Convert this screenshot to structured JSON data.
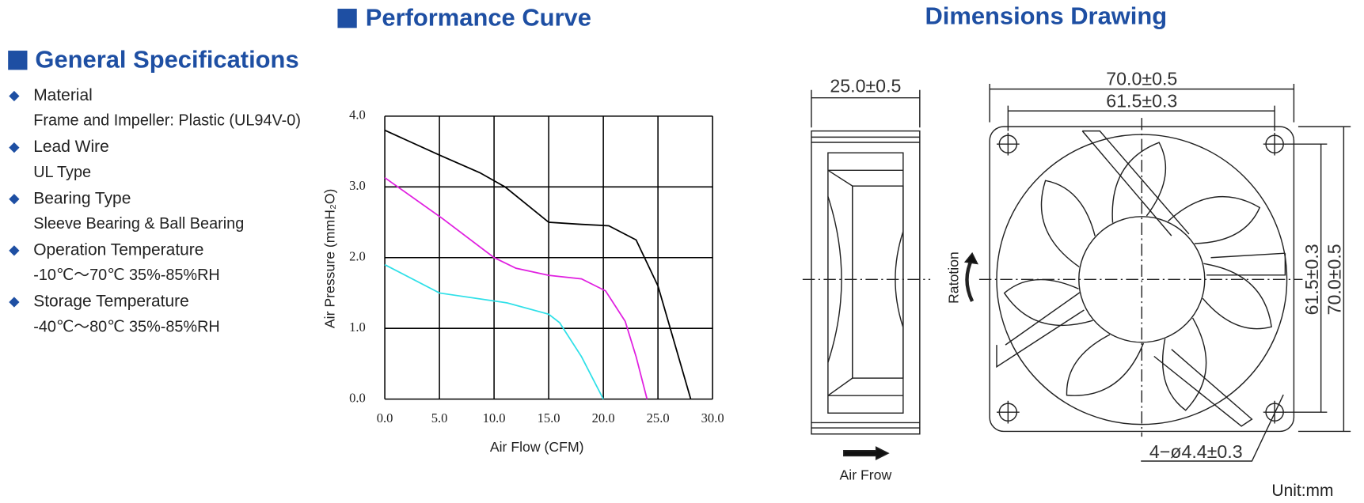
{
  "general_specifications": {
    "title": "General Specifications",
    "items": [
      {
        "label": "Material",
        "value": "Frame and Impeller: Plastic (UL94V-0)"
      },
      {
        "label": "Lead Wire",
        "value": "UL Type"
      },
      {
        "label": "Bearing Type",
        "value": "Sleeve Bearing & Ball Bearing"
      },
      {
        "label": "Operation Temperature",
        "value": "-10℃～70℃  35%-85%RH"
      },
      {
        "label": "Storage Temperature",
        "value": "-40℃～80℃  35%-85%RH"
      }
    ]
  },
  "chart_data": {
    "type": "line",
    "title": "Performance Curve",
    "x_label": "Air Flow (CFM)",
    "y_label": "Air Pressure (mmH₂O)",
    "xlim": [
      0,
      30
    ],
    "ylim": [
      0,
      4
    ],
    "xticks": [
      {
        "value": 0,
        "label": "0.0"
      },
      {
        "value": 5,
        "label": "5.0"
      },
      {
        "value": 10,
        "label": "10.0"
      },
      {
        "value": 15,
        "label": "15.0"
      },
      {
        "value": 20,
        "label": "20.0"
      },
      {
        "value": 25,
        "label": "25.0"
      },
      {
        "value": 30,
        "label": "30.0"
      }
    ],
    "yticks": [
      {
        "value": 0,
        "label": "0.0"
      },
      {
        "value": 1,
        "label": "1.0"
      },
      {
        "value": 2,
        "label": "2.0"
      },
      {
        "value": 3,
        "label": "3.0"
      },
      {
        "value": 4,
        "label": "4.0"
      }
    ],
    "grid": true,
    "series": [
      {
        "color": "#000000",
        "x": [
          0,
          5,
          8.7,
          11,
          15,
          18,
          20.5,
          23,
          25,
          26.5,
          28
        ],
        "values": [
          3.8,
          3.45,
          3.2,
          3.0,
          2.5,
          2.47,
          2.45,
          2.25,
          1.6,
          0.8,
          0
        ]
      },
      {
        "color": "#e020e0",
        "x": [
          0,
          5.3,
          10,
          12,
          15,
          18,
          20.2,
          22,
          23,
          24
        ],
        "values": [
          3.13,
          2.55,
          2.0,
          1.85,
          1.75,
          1.7,
          1.53,
          1.1,
          0.6,
          0
        ]
      },
      {
        "color": "#30e0e8",
        "x": [
          0,
          5,
          11.2,
          15,
          16,
          18,
          20
        ],
        "values": [
          1.9,
          1.5,
          1.36,
          1.2,
          1.08,
          0.6,
          0
        ]
      }
    ]
  },
  "dimensions_drawing": {
    "title": "Dimensions Drawing",
    "depth": "25.0±0.5",
    "width": "70.0±0.5",
    "hole_spacing": "61.5±0.3",
    "hole_spacing_vertical": "61.5±0.3",
    "height": "70.0±0.5",
    "holes": "4−ø4.4±0.3",
    "rotation_label": "Ratotion",
    "airflow_label": "Air Frow",
    "unit": "Unit:mm"
  }
}
